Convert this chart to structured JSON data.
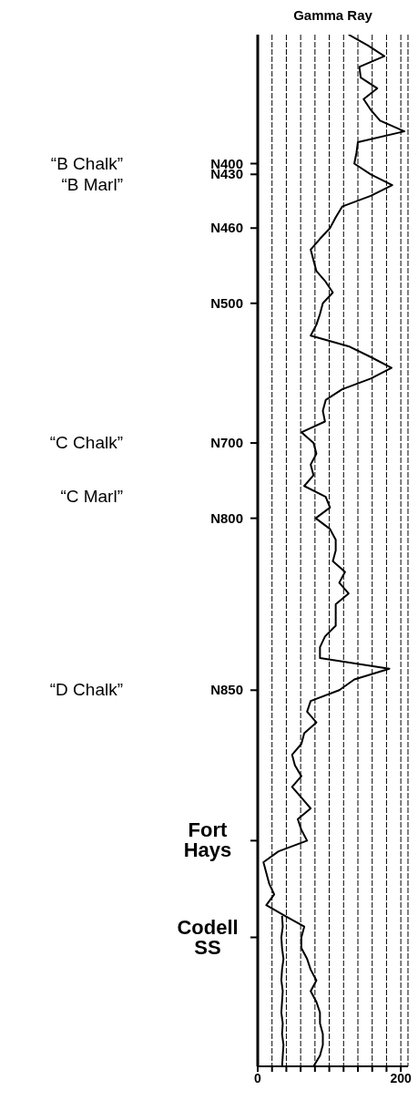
{
  "chart_data": {
    "type": "line",
    "title": "Gamma Ray",
    "categories": [
      null,
      null,
      null,
      null,
      null,
      null,
      null,
      null,
      null,
      null,
      null,
      null,
      "N400",
      "N430",
      null,
      null,
      null,
      null,
      "N460",
      null,
      null,
      null,
      null,
      null,
      null,
      "N500",
      null,
      null,
      null,
      null,
      null,
      null,
      null,
      null,
      null,
      null,
      null,
      null,
      "N700",
      null,
      null,
      null,
      null,
      null,
      null,
      "N800",
      null,
      null,
      null,
      null,
      null,
      null,
      null,
      null,
      null,
      null,
      null,
      null,
      null,
      null,
      null,
      "N850",
      null,
      null,
      null,
      null,
      null,
      null,
      null,
      null,
      null,
      null,
      null,
      null,
      null,
      "Fort Hays",
      null,
      null,
      null,
      null,
      null,
      null,
      null,
      null,
      "Codell SS",
      null,
      null,
      null,
      null,
      null,
      null,
      null,
      null,
      null,
      null,
      null,
      null
    ],
    "y2_categories": [
      null,
      null,
      null,
      null,
      null,
      null,
      null,
      null,
      null,
      null,
      null,
      null,
      "“B Chalk”",
      null,
      "“B Marl”",
      null,
      null,
      null,
      null,
      null,
      null,
      null,
      null,
      null,
      null,
      null,
      null,
      null,
      null,
      null,
      null,
      null,
      null,
      null,
      null,
      null,
      null,
      null,
      "“C Chalk”",
      null,
      null,
      null,
      null,
      "“C Marl”",
      null,
      null,
      null,
      null,
      null,
      null,
      null,
      null,
      null,
      null,
      null,
      null,
      null,
      null,
      null,
      null,
      null,
      "“D Chalk”",
      null,
      null,
      null,
      null,
      null,
      null,
      null,
      null,
      null,
      null,
      null,
      null,
      null,
      null,
      null,
      null,
      null,
      null,
      null,
      null,
      null,
      null,
      null,
      null,
      null,
      null,
      null,
      null,
      null,
      null,
      null,
      null,
      null,
      null,
      null
    ],
    "series": [
      {
        "color": "#000000",
        "values": [
          127,
          154,
          177,
          142,
          144,
          167,
          148,
          158,
          171,
          205,
          140,
          138,
          135,
          158,
          188,
          158,
          118,
          109,
          101,
          87,
          74,
          78,
          82,
          95,
          105,
          91,
          87,
          82,
          74,
          127,
          158,
          187,
          158,
          118,
          95,
          91,
          94,
          61,
          78,
          82,
          74,
          78,
          65,
          95,
          101,
          81,
          101,
          109,
          109,
          105,
          122,
          114,
          127,
          109,
          109,
          109,
          94,
          87,
          87,
          184,
          135,
          114,
          74,
          69,
          82,
          65,
          61,
          48,
          52,
          61,
          48,
          61,
          74,
          56,
          61,
          69,
          29,
          8,
          12,
          16,
          23,
          12,
          38,
          65,
          61,
          61,
          69,
          74,
          82,
          74,
          82,
          87,
          87,
          91,
          91,
          87,
          78
        ]
      },
      {
        "color": "#000000",
        "values": [
          null,
          null,
          null,
          null,
          null,
          null,
          null,
          null,
          null,
          null,
          null,
          null,
          null,
          null,
          null,
          null,
          null,
          null,
          null,
          null,
          null,
          null,
          null,
          null,
          null,
          null,
          null,
          null,
          null,
          null,
          null,
          null,
          null,
          null,
          null,
          null,
          null,
          null,
          null,
          null,
          null,
          null,
          null,
          null,
          null,
          null,
          null,
          null,
          null,
          null,
          null,
          null,
          null,
          null,
          null,
          null,
          null,
          null,
          null,
          null,
          null,
          null,
          null,
          null,
          null,
          null,
          null,
          null,
          null,
          null,
          null,
          null,
          null,
          null,
          null,
          null,
          null,
          null,
          null,
          null,
          null,
          null,
          34,
          35,
          33,
          34,
          36,
          34,
          33,
          35,
          34,
          33,
          35,
          34,
          36,
          35,
          34
        ]
      }
    ],
    "orientation": "horizontal",
    "xlim": [
      0,
      210
    ],
    "xticks": [
      0,
      {
        "value": 20,
        "label": null
      },
      {
        "value": 40,
        "label": null
      },
      {
        "value": 60,
        "label": null
      },
      {
        "value": 80,
        "label": null
      },
      {
        "value": 100,
        "label": null
      },
      {
        "value": 120,
        "label": null
      },
      {
        "value": 140,
        "label": null
      },
      {
        "value": 160,
        "label": null
      },
      {
        "value": 180,
        "label": null
      },
      200
    ],
    "grid": "x"
  }
}
